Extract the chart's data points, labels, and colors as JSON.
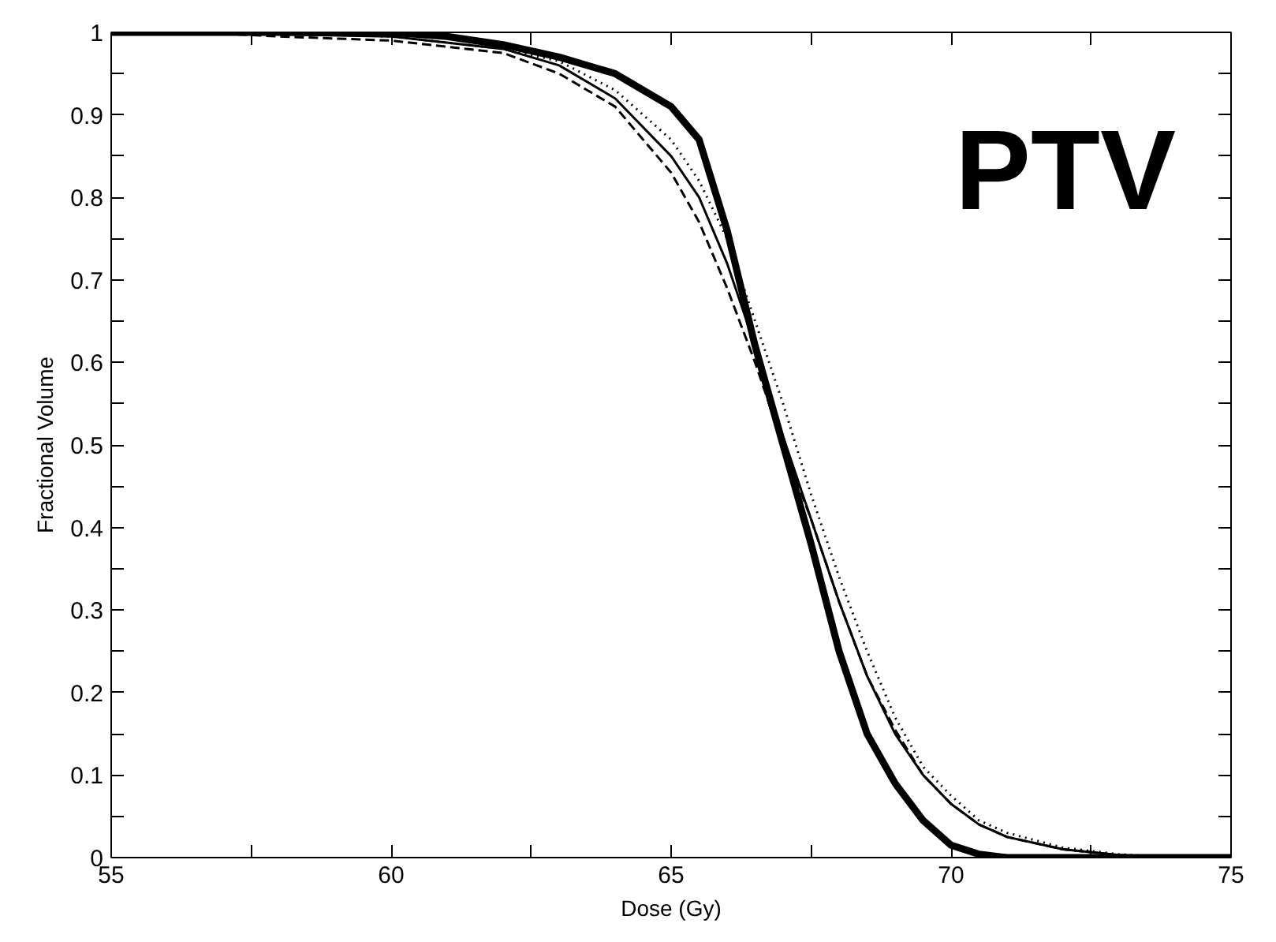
{
  "chart_data": {
    "type": "line",
    "xlabel": "Dose (Gy)",
    "ylabel": "Fractional Volume",
    "annotations": [
      "PTV"
    ],
    "xlim": [
      55,
      75
    ],
    "ylim": [
      0,
      1
    ],
    "xticks": [
      55,
      {
        "value": 57.5,
        "label": null
      },
      60,
      {
        "value": 62.5,
        "label": null
      },
      65,
      {
        "value": 67.5,
        "label": null
      },
      70,
      {
        "value": 72.5,
        "label": null
      },
      75
    ],
    "yticks": [
      0,
      {
        "value": 0.05,
        "label": null
      },
      0.1,
      {
        "value": 0.15,
        "label": null
      },
      0.2,
      {
        "value": 0.25,
        "label": null
      },
      0.3,
      {
        "value": 0.35,
        "label": null
      },
      0.4,
      {
        "value": 0.45,
        "label": null
      },
      0.5,
      {
        "value": 0.55,
        "label": null
      },
      0.6,
      {
        "value": 0.65,
        "label": null
      },
      0.7,
      {
        "value": 0.75,
        "label": null
      },
      0.8,
      {
        "value": 0.85,
        "label": null
      },
      0.9,
      {
        "value": 0.95,
        "label": null
      },
      1
    ],
    "grid": false,
    "marker": "none",
    "series": [
      {
        "color": "#000000",
        "line_style": "solid",
        "x": [
          55,
          60,
          61,
          62,
          63,
          64,
          65,
          65.5,
          66,
          66.5,
          67,
          67.5,
          68,
          68.5,
          69,
          69.5,
          70,
          70.5,
          71,
          75
        ],
        "values": [
          1,
          1,
          0.995,
          0.985,
          0.97,
          0.95,
          0.91,
          0.87,
          0.76,
          0.62,
          0.5,
          0.38,
          0.25,
          0.15,
          0.09,
          0.045,
          0.015,
          0.004,
          0,
          0
        ]
      },
      {
        "color": "#000000",
        "line_style": "solid",
        "x": [
          56,
          60,
          62,
          63,
          64,
          65,
          65.5,
          66,
          66.5,
          67,
          67.5,
          68,
          68.5,
          69,
          69.5,
          70,
          70.5,
          71,
          72,
          73,
          74,
          75
        ],
        "values": [
          1,
          0.995,
          0.98,
          0.96,
          0.92,
          0.85,
          0.8,
          0.72,
          0.62,
          0.51,
          0.41,
          0.31,
          0.22,
          0.15,
          0.1,
          0.065,
          0.04,
          0.025,
          0.01,
          0.003,
          0,
          0
        ]
      },
      {
        "color": "#000000",
        "line_style": "dotted",
        "x": [
          57,
          60,
          62,
          63,
          64,
          65,
          65.5,
          66,
          66.5,
          67,
          67.5,
          68,
          68.5,
          69,
          69.5,
          70,
          70.5,
          71,
          72,
          73,
          74,
          75
        ],
        "values": [
          1,
          0.995,
          0.98,
          0.965,
          0.93,
          0.87,
          0.82,
          0.75,
          0.65,
          0.55,
          0.44,
          0.34,
          0.25,
          0.17,
          0.11,
          0.075,
          0.045,
          0.03,
          0.012,
          0.004,
          0,
          0
        ]
      },
      {
        "color": "#000000",
        "line_style": "dashed",
        "x": [
          56.5,
          58,
          60,
          62,
          63,
          64,
          65,
          65.5,
          66,
          66.5,
          67,
          67.5,
          68,
          68.5,
          69,
          69.5,
          70,
          70.5,
          71,
          72,
          73,
          74,
          75
        ],
        "values": [
          1,
          0.995,
          0.99,
          0.975,
          0.95,
          0.91,
          0.83,
          0.77,
          0.69,
          0.6,
          0.5,
          0.41,
          0.31,
          0.22,
          0.155,
          0.1,
          0.065,
          0.04,
          0.025,
          0.01,
          0.003,
          0,
          0
        ]
      }
    ]
  }
}
